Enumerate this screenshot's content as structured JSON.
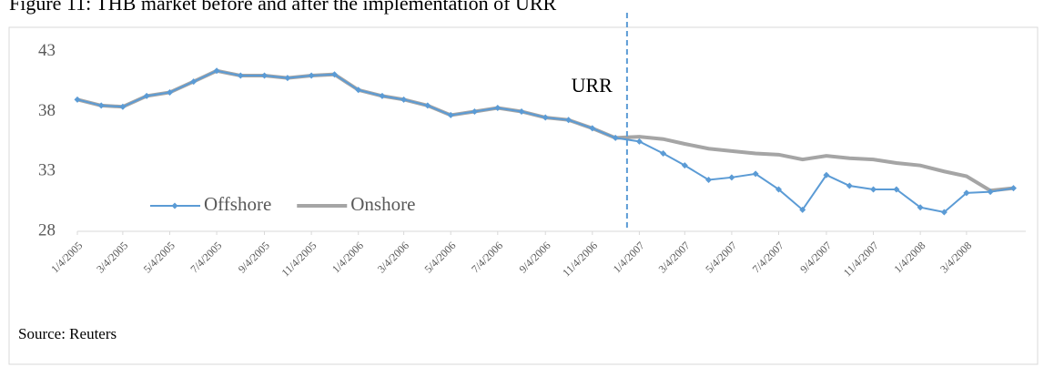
{
  "chart_data": {
    "type": "line",
    "title": "Figure 11: THB market before and after the implementation of URR",
    "source": "Source: Reuters",
    "x": [
      "1/4/2005",
      "2/4/2005",
      "3/4/2005",
      "4/4/2005",
      "5/4/2005",
      "6/4/2005",
      "7/4/2005",
      "8/4/2005",
      "9/4/2005",
      "10/4/2005",
      "11/4/2005",
      "12/4/2005",
      "1/4/2006",
      "2/4/2006",
      "3/4/2006",
      "4/4/2006",
      "5/4/2006",
      "6/4/2006",
      "7/4/2006",
      "8/4/2006",
      "9/4/2006",
      "10/4/2006",
      "11/4/2006",
      "12/4/2006",
      "1/4/2007",
      "2/4/2007",
      "3/4/2007",
      "4/4/2007",
      "5/4/2007",
      "6/4/2007",
      "7/4/2007",
      "8/4/2007",
      "9/4/2007",
      "10/4/2007",
      "11/4/2007",
      "12/4/2007",
      "1/4/2008",
      "2/4/2008",
      "3/4/2008",
      "4/4/2008",
      "5/4/2008"
    ],
    "series": [
      {
        "name": "Offshore",
        "color": "#5b9bd5",
        "values": [
          39.0,
          38.5,
          38.4,
          39.3,
          39.6,
          40.5,
          41.4,
          41.0,
          41.0,
          40.8,
          41.0,
          41.1,
          39.8,
          39.3,
          39.0,
          38.5,
          37.7,
          38.0,
          38.3,
          38.0,
          37.5,
          37.3,
          36.6,
          35.8,
          35.5,
          34.5,
          33.5,
          32.3,
          32.5,
          32.8,
          31.5,
          29.8,
          32.7,
          31.8,
          31.5,
          31.5,
          30.0,
          29.6,
          31.2,
          31.3,
          31.6
        ]
      },
      {
        "name": "Onshore",
        "color": "#a5a5a5",
        "values": [
          39.0,
          38.5,
          38.4,
          39.3,
          39.6,
          40.5,
          41.4,
          41.0,
          41.0,
          40.8,
          41.0,
          41.1,
          39.8,
          39.3,
          39.0,
          38.5,
          37.7,
          38.0,
          38.3,
          38.0,
          37.5,
          37.3,
          36.6,
          35.8,
          35.9,
          35.7,
          35.3,
          34.9,
          34.7,
          34.5,
          34.4,
          34.0,
          34.3,
          34.1,
          34.0,
          33.7,
          33.5,
          33.0,
          32.6,
          31.4,
          31.6
        ]
      }
    ],
    "xlim": [
      "1/4/2005",
      "5/20/2008"
    ],
    "xticks": [
      "1/4/2005",
      "3/4/2005",
      "5/4/2005",
      "7/4/2005",
      "9/4/2005",
      "11/4/2005",
      "1/4/2006",
      "3/4/2006",
      "5/4/2006",
      "7/4/2006",
      "9/4/2006",
      "11/4/2006",
      "1/4/2007",
      "3/4/2007",
      "5/4/2007",
      "7/4/2007",
      "9/4/2007",
      "11/4/2007",
      "1/4/2008",
      "3/4/2008"
    ],
    "ylim": [
      28,
      44.5
    ],
    "yticks": [
      28,
      33,
      38,
      43
    ],
    "grid": false,
    "annotation": {
      "x": "12/19/2006",
      "label": "URR"
    },
    "legend": "lower-left"
  }
}
